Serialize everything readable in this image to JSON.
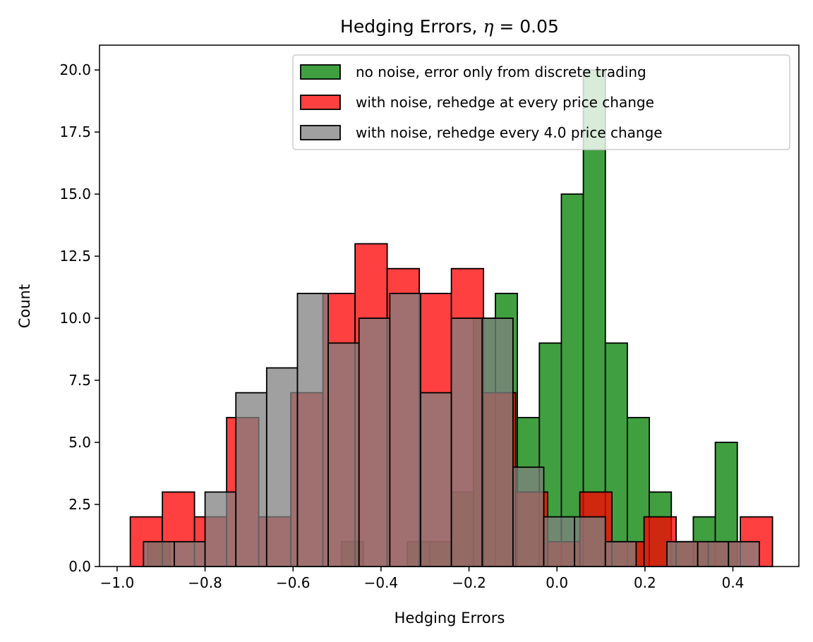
{
  "chart_data": {
    "type": "histogram",
    "title_prefix": "Hedging Errors, ",
    "title_symbol": "η",
    "title_suffix": " = 0.05",
    "xlabel": "Hedging Errors",
    "ylabel": "Count",
    "xlim": [
      -1.04,
      0.55
    ],
    "ylim": [
      0,
      21
    ],
    "xticks": [
      {
        "value": -1.0,
        "label": "−1.0"
      },
      {
        "value": -0.8,
        "label": "−0.8"
      },
      {
        "value": -0.6,
        "label": "−0.6"
      },
      {
        "value": -0.4,
        "label": "−0.4"
      },
      {
        "value": -0.2,
        "label": "−0.2"
      },
      {
        "value": 0.0,
        "label": "0.0"
      },
      {
        "value": 0.2,
        "label": "0.2"
      },
      {
        "value": 0.4,
        "label": "0.4"
      }
    ],
    "yticks": [
      {
        "value": 0.0,
        "label": "0.0"
      },
      {
        "value": 2.5,
        "label": "2.5"
      },
      {
        "value": 5.0,
        "label": "5.0"
      },
      {
        "value": 7.5,
        "label": "7.5"
      },
      {
        "value": 10.0,
        "label": "10.0"
      },
      {
        "value": 12.5,
        "label": "12.5"
      },
      {
        "value": 15.0,
        "label": "15.0"
      },
      {
        "value": 17.5,
        "label": "17.5"
      },
      {
        "value": 20.0,
        "label": "20.0"
      }
    ],
    "grid": false,
    "legend_position": "upper-right",
    "series": [
      {
        "name": "no noise, error only from discrete trading",
        "color": "#008000",
        "alpha": 0.75,
        "bins": [
          {
            "x0": -0.93,
            "x1": -0.88,
            "count": 1
          },
          {
            "x0": -0.49,
            "x1": -0.44,
            "count": 1
          },
          {
            "x0": -0.34,
            "x1": -0.29,
            "count": 1
          },
          {
            "x0": -0.29,
            "x1": -0.24,
            "count": 1
          },
          {
            "x0": -0.24,
            "x1": -0.19,
            "count": 3
          },
          {
            "x0": -0.19,
            "x1": -0.14,
            "count": 10
          },
          {
            "x0": -0.14,
            "x1": -0.09,
            "count": 11
          },
          {
            "x0": -0.09,
            "x1": -0.04,
            "count": 6
          },
          {
            "x0": -0.04,
            "x1": 0.01,
            "count": 9
          },
          {
            "x0": 0.01,
            "x1": 0.06,
            "count": 15
          },
          {
            "x0": 0.06,
            "x1": 0.11,
            "count": 20
          },
          {
            "x0": 0.11,
            "x1": 0.16,
            "count": 9
          },
          {
            "x0": 0.16,
            "x1": 0.21,
            "count": 6
          },
          {
            "x0": 0.21,
            "x1": 0.26,
            "count": 3
          },
          {
            "x0": 0.26,
            "x1": 0.31,
            "count": 1
          },
          {
            "x0": 0.31,
            "x1": 0.36,
            "count": 2
          },
          {
            "x0": 0.36,
            "x1": 0.41,
            "count": 5
          }
        ]
      },
      {
        "name": "with noise, rehedge at every price change",
        "color": "#ff0000",
        "alpha": 0.75,
        "bins": [
          {
            "x0": -0.97,
            "x1": -0.897,
            "count": 2
          },
          {
            "x0": -0.897,
            "x1": -0.824,
            "count": 3
          },
          {
            "x0": -0.824,
            "x1": -0.751,
            "count": 2
          },
          {
            "x0": -0.751,
            "x1": -0.678,
            "count": 6
          },
          {
            "x0": -0.678,
            "x1": -0.605,
            "count": 2
          },
          {
            "x0": -0.605,
            "x1": -0.532,
            "count": 7
          },
          {
            "x0": -0.532,
            "x1": -0.459,
            "count": 11
          },
          {
            "x0": -0.459,
            "x1": -0.386,
            "count": 13
          },
          {
            "x0": -0.386,
            "x1": -0.313,
            "count": 12
          },
          {
            "x0": -0.313,
            "x1": -0.24,
            "count": 11
          },
          {
            "x0": -0.24,
            "x1": -0.167,
            "count": 12
          },
          {
            "x0": -0.167,
            "x1": -0.094,
            "count": 7
          },
          {
            "x0": -0.094,
            "x1": -0.021,
            "count": 3
          },
          {
            "x0": -0.021,
            "x1": 0.052,
            "count": 1
          },
          {
            "x0": 0.052,
            "x1": 0.125,
            "count": 3
          },
          {
            "x0": 0.125,
            "x1": 0.198,
            "count": 1
          },
          {
            "x0": 0.198,
            "x1": 0.271,
            "count": 2
          },
          {
            "x0": 0.271,
            "x1": 0.344,
            "count": 1
          },
          {
            "x0": 0.344,
            "x1": 0.417,
            "count": 1
          },
          {
            "x0": 0.417,
            "x1": 0.49,
            "count": 2
          }
        ]
      },
      {
        "name": "with noise, rehedge every 4.0 price change",
        "color": "#808080",
        "alpha": 0.75,
        "bins": [
          {
            "x0": -0.94,
            "x1": -0.87,
            "count": 1
          },
          {
            "x0": -0.87,
            "x1": -0.8,
            "count": 1
          },
          {
            "x0": -0.8,
            "x1": -0.73,
            "count": 3
          },
          {
            "x0": -0.73,
            "x1": -0.66,
            "count": 7
          },
          {
            "x0": -0.66,
            "x1": -0.59,
            "count": 8
          },
          {
            "x0": -0.59,
            "x1": -0.52,
            "count": 11
          },
          {
            "x0": -0.52,
            "x1": -0.45,
            "count": 9
          },
          {
            "x0": -0.45,
            "x1": -0.38,
            "count": 10
          },
          {
            "x0": -0.38,
            "x1": -0.31,
            "count": 11
          },
          {
            "x0": -0.31,
            "x1": -0.24,
            "count": 7
          },
          {
            "x0": -0.24,
            "x1": -0.17,
            "count": 10
          },
          {
            "x0": -0.17,
            "x1": -0.1,
            "count": 10
          },
          {
            "x0": -0.1,
            "x1": -0.03,
            "count": 4
          },
          {
            "x0": -0.03,
            "x1": 0.04,
            "count": 2
          },
          {
            "x0": 0.04,
            "x1": 0.11,
            "count": 2
          },
          {
            "x0": 0.11,
            "x1": 0.18,
            "count": 1
          },
          {
            "x0": 0.18,
            "x1": 0.25,
            "count": 0
          },
          {
            "x0": 0.25,
            "x1": 0.32,
            "count": 1
          },
          {
            "x0": 0.32,
            "x1": 0.39,
            "count": 1
          },
          {
            "x0": 0.39,
            "x1": 0.46,
            "count": 1
          }
        ]
      }
    ]
  }
}
